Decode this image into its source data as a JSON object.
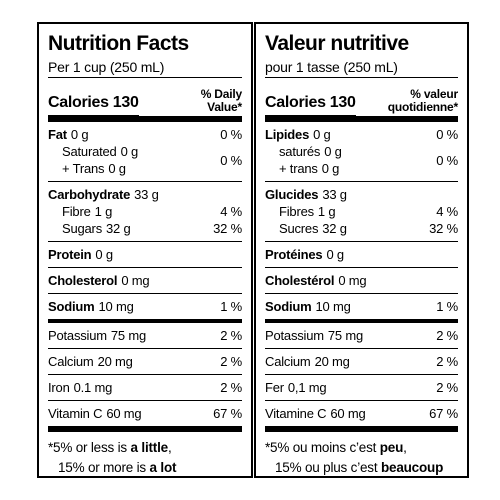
{
  "panels": [
    {
      "title": "Nutrition Facts",
      "serving": "Per 1 cup (250 mL)",
      "calories_label": "Calories",
      "calories_value": "130",
      "dv_header": [
        "% Daily",
        "Value*"
      ],
      "groups": [
        {
          "rows": [
            {
              "name": "Fat",
              "amount": "0 g",
              "bold": true,
              "dv": "0 %"
            },
            {
              "lines": [
                {
                  "name": "Saturated",
                  "amount": "0 g"
                },
                {
                  "name": "+ Trans",
                  "amount": "0 g"
                }
              ],
              "dv": "0 %"
            }
          ]
        },
        {
          "rows": [
            {
              "name": "Carbohydrate",
              "amount": "33 g",
              "bold": true
            },
            {
              "name": "Fibre",
              "amount": "1 g",
              "sub": true,
              "dv": "4 %"
            },
            {
              "name": "Sugars",
              "amount": "32 g",
              "sub": true,
              "dv": "32 %"
            }
          ]
        },
        {
          "rows": [
            {
              "name": "Protein",
              "amount": "0 g",
              "bold": true
            }
          ]
        },
        {
          "rows": [
            {
              "name": "Cholesterol",
              "amount": "0 mg",
              "bold": true
            }
          ]
        },
        {
          "rows": [
            {
              "name": "Sodium",
              "amount": "10 mg",
              "bold": true,
              "dv": "1 %"
            }
          ]
        },
        {
          "rows": [
            {
              "name": "Potassium",
              "amount": "75 mg",
              "dv": "2 %"
            }
          ]
        },
        {
          "rows": [
            {
              "name": "Calcium",
              "amount": "20 mg",
              "dv": "2 %"
            }
          ]
        },
        {
          "rows": [
            {
              "name": "Iron",
              "amount": "0.1 mg",
              "dv": "2 %"
            }
          ]
        },
        {
          "rows": [
            {
              "name": "Vitamin C",
              "amount": "60 mg",
              "dv": "67 %"
            }
          ]
        }
      ],
      "footnote": [
        [
          "*5% or less is ",
          "a little",
          ","
        ],
        [
          "15% or more is ",
          "a lot"
        ]
      ]
    },
    {
      "title": "Valeur nutritive",
      "serving": "pour 1 tasse (250 mL)",
      "calories_label": "Calories",
      "calories_value": "130",
      "dv_header": [
        "% valeur",
        "quotidienne*"
      ],
      "groups": [
        {
          "rows": [
            {
              "name": "Lipides",
              "amount": "0 g",
              "bold": true,
              "dv": "0 %"
            },
            {
              "lines": [
                {
                  "name": "saturés",
                  "amount": "0 g"
                },
                {
                  "name": "+ trans",
                  "amount": "0 g"
                }
              ],
              "dv": "0 %"
            }
          ]
        },
        {
          "rows": [
            {
              "name": "Glucides",
              "amount": "33 g",
              "bold": true
            },
            {
              "name": "Fibres",
              "amount": "1 g",
              "sub": true,
              "dv": "4 %"
            },
            {
              "name": "Sucres",
              "amount": "32 g",
              "sub": true,
              "dv": "32 %"
            }
          ]
        },
        {
          "rows": [
            {
              "name": "Protéines",
              "amount": "0 g",
              "bold": true
            }
          ]
        },
        {
          "rows": [
            {
              "name": "Cholestérol",
              "amount": "0 mg",
              "bold": true
            }
          ]
        },
        {
          "rows": [
            {
              "name": "Sodium",
              "amount": "10 mg",
              "bold": true,
              "dv": "1 %"
            }
          ]
        },
        {
          "rows": [
            {
              "name": "Potassium",
              "amount": "75 mg",
              "dv": "2 %"
            }
          ]
        },
        {
          "rows": [
            {
              "name": "Calcium",
              "amount": "20 mg",
              "dv": "2 %"
            }
          ]
        },
        {
          "rows": [
            {
              "name": "Fer",
              "amount": "0,1 mg",
              "dv": "2 %"
            }
          ]
        },
        {
          "rows": [
            {
              "name": "Vitamine C",
              "amount": "60 mg",
              "dv": "67 %"
            }
          ]
        }
      ],
      "footnote": [
        [
          "*5% ou moins c’est ",
          "peu",
          ","
        ],
        [
          "15% ou plus c’est ",
          "beaucoup"
        ]
      ]
    }
  ]
}
